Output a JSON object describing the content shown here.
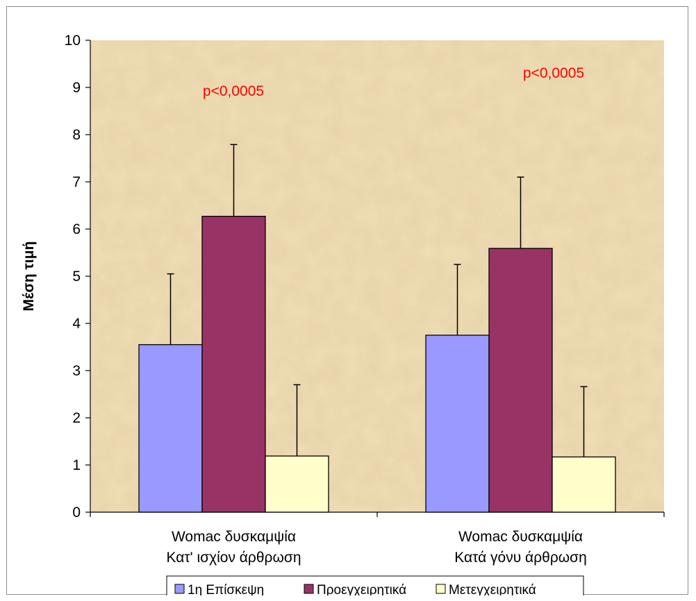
{
  "chart_data": {
    "type": "bar",
    "ylabel": "Μέση τιμή",
    "ylim": [
      0,
      10
    ],
    "yticks": [
      "0",
      "1",
      "2",
      "3",
      "4",
      "5",
      "6",
      "7",
      "8",
      "9",
      "10"
    ],
    "categories": [
      [
        "Womac δυσκαμψία",
        "Κατ' ισχίον άρθρωση"
      ],
      [
        "Womac δυσκαμψία",
        "Κατά γόνυ άρθρωση"
      ]
    ],
    "series": [
      {
        "name": "1η Επίσκεψη",
        "color": "#9999ff",
        "values": [
          3.55,
          3.75
        ],
        "error_plus": [
          1.5,
          1.5
        ]
      },
      {
        "name": "Προεγχειρητικά",
        "color": "#993366",
        "values": [
          6.27,
          5.59
        ],
        "error_plus": [
          1.52,
          1.51
        ]
      },
      {
        "name": "Μετεγχειρητικά",
        "color": "#ffffcc",
        "values": [
          1.19,
          1.17
        ],
        "error_plus": [
          1.51,
          1.49
        ]
      }
    ],
    "annotations": [
      "p<0,0005",
      "p<0,0005"
    ],
    "legend_position": "bottom",
    "grid": false,
    "plot_background": "#eedcb2"
  }
}
